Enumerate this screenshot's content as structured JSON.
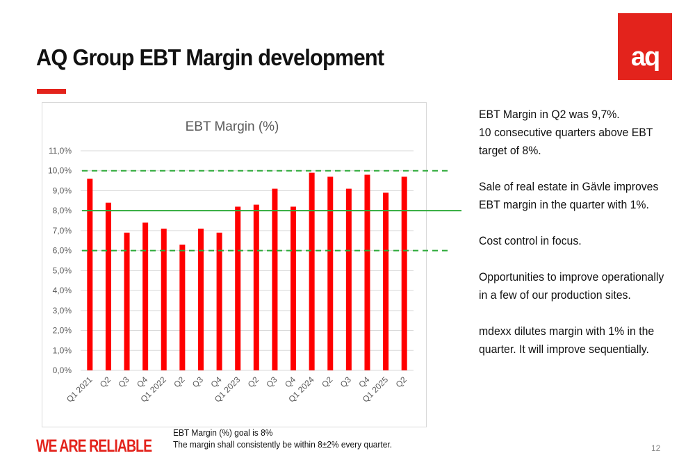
{
  "slide": {
    "title": "AQ Group EBT Margin development",
    "logo_text": "aq",
    "slogan": "WE ARE RELIABLE",
    "page_number": "12",
    "footnote_line1": "EBT Margin (%) goal is 8%",
    "footnote_line2": "The margin shall consistently be within 8±2% every quarter.",
    "accent_color": "#e3231c",
    "target_line_color": "#2eaa3a"
  },
  "commentary": [
    "EBT Margin in Q2 was 9,7%.\n10 consecutive quarters above EBT target of 8%.",
    "Sale of real estate in Gävle improves EBT margin in the quarter with 1%.",
    "Cost control in focus.",
    "Opportunities to improve operationally in a few of our production sites.",
    "mdexx dilutes margin with 1% in the quarter. It will improve sequentially."
  ],
  "chart_data": {
    "type": "bar",
    "title": "EBT Margin (%)",
    "categories": [
      "Q1 2021",
      "Q2",
      "Q3",
      "Q4",
      "Q1 2022",
      "Q2",
      "Q3",
      "Q4",
      "Q1 2023",
      "Q2",
      "Q3",
      "Q4",
      "Q1 2024",
      "Q2",
      "Q3",
      "Q4",
      "Q1 2025",
      "Q2"
    ],
    "values": [
      9.6,
      8.4,
      6.9,
      7.4,
      7.1,
      6.3,
      7.1,
      6.9,
      8.2,
      8.3,
      9.1,
      8.2,
      9.9,
      9.7,
      9.1,
      9.8,
      8.9,
      9.7
    ],
    "ylim": [
      0,
      11
    ],
    "yticks": [
      "0,0%",
      "1,0%",
      "2,0%",
      "3,0%",
      "4,0%",
      "5,0%",
      "6,0%",
      "7,0%",
      "8,0%",
      "9,0%",
      "10,0%",
      "11,0%"
    ],
    "bar_color": "#ff0000",
    "grid": true,
    "target": 8.0,
    "band_upper": 10.0,
    "band_lower": 6.0
  }
}
